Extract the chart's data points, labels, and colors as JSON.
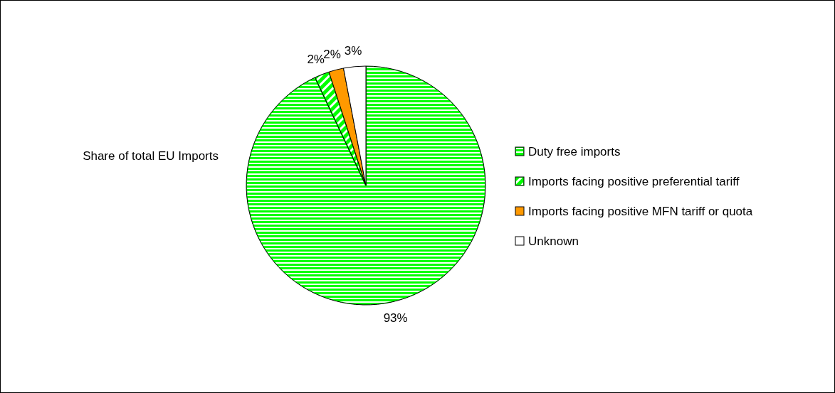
{
  "chart_data": {
    "type": "pie",
    "title": "Share of total EU Imports",
    "categories": [
      "Duty free imports",
      "Imports facing positive preferential tariff",
      "Imports facing positive MFN tariff or quota",
      "Unknown"
    ],
    "values": [
      93,
      2,
      2,
      3
    ],
    "colors": [
      "#00ff00",
      "#00ff00",
      "#ff9900",
      "#ffffff"
    ],
    "value_labels": [
      "93%",
      "2%",
      "2%",
      "3%"
    ],
    "legend": "right"
  }
}
